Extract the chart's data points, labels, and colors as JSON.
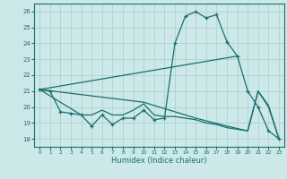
{
  "xlabel": "Humidex (Indice chaleur)",
  "bg_color": "#cce8e8",
  "grid_color": "#aacccc",
  "line_color": "#1a6e6e",
  "xlim": [
    -0.5,
    23.5
  ],
  "ylim": [
    17.5,
    26.5
  ],
  "xticks": [
    0,
    1,
    2,
    3,
    4,
    5,
    6,
    7,
    8,
    9,
    10,
    11,
    12,
    13,
    14,
    15,
    16,
    17,
    18,
    19,
    20,
    21,
    22,
    23
  ],
  "yticks": [
    18,
    19,
    20,
    21,
    22,
    23,
    24,
    25,
    26
  ],
  "line1_x": [
    0,
    1,
    2,
    3,
    4,
    5,
    6,
    7,
    8,
    9,
    10,
    11,
    12,
    13,
    14,
    15,
    16,
    17,
    18,
    19,
    20,
    21,
    22,
    23
  ],
  "line1_y": [
    21.1,
    21.0,
    19.7,
    19.6,
    19.5,
    18.8,
    19.5,
    18.9,
    19.3,
    19.3,
    19.8,
    19.2,
    19.3,
    24.0,
    25.7,
    26.0,
    25.6,
    25.8,
    24.1,
    23.2,
    21.0,
    20.0,
    18.5,
    18.0
  ],
  "line2_x": [
    0,
    19
  ],
  "line2_y": [
    21.1,
    23.2
  ],
  "line3_x": [
    0,
    10,
    15,
    18,
    20,
    21,
    22,
    23
  ],
  "line3_y": [
    21.1,
    20.3,
    19.3,
    18.8,
    18.5,
    21.0,
    20.0,
    18.0
  ],
  "line4_x": [
    0,
    4,
    5,
    6,
    7,
    8,
    9,
    10,
    11,
    12,
    13,
    14,
    15,
    16,
    17,
    18,
    19,
    20,
    21,
    22,
    23
  ],
  "line4_y": [
    21.1,
    19.5,
    19.5,
    19.8,
    19.5,
    19.5,
    19.8,
    20.2,
    19.5,
    19.4,
    19.4,
    19.3,
    19.2,
    19.0,
    18.9,
    18.7,
    18.6,
    18.5,
    21.0,
    20.1,
    18.0
  ]
}
